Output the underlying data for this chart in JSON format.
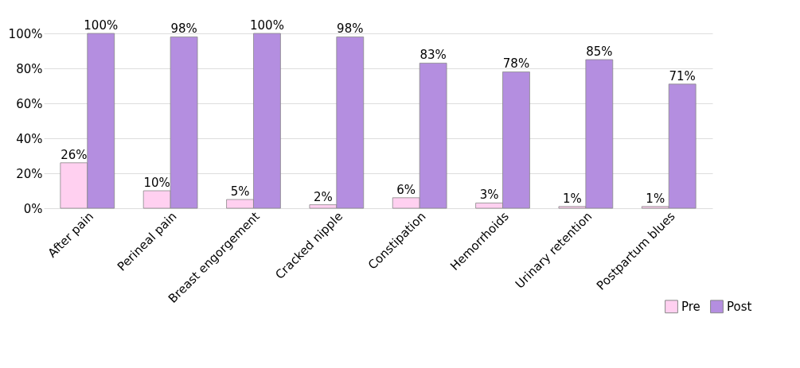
{
  "chart_data": {
    "type": "bar",
    "categories": [
      "After pain",
      "Perineal pain",
      "Breast engorgement",
      "Cracked nipple",
      "Constipation",
      "Hemorrhoids",
      "Urinary retention",
      "Postpartum blues"
    ],
    "series": [
      {
        "name": "Pre",
        "color": "#ffd0f0",
        "values": [
          26,
          10,
          5,
          2,
          6,
          3,
          1,
          1
        ],
        "value_labels": [
          "26%",
          "10%",
          "5%",
          "2%",
          "6%",
          "3%",
          "1%",
          "1%"
        ]
      },
      {
        "name": "Post",
        "color": "#b48ee0",
        "values": [
          100,
          98,
          100,
          98,
          83,
          78,
          85,
          71
        ],
        "value_labels": [
          "100%",
          "98%",
          "100%",
          "98%",
          "83%",
          "78%",
          "85%",
          "71%"
        ]
      }
    ],
    "ylim": [
      0,
      100
    ],
    "yticks": [
      {
        "value": 0,
        "label": "0%"
      },
      {
        "value": 20,
        "label": "20%"
      },
      {
        "value": 40,
        "label": "40%"
      },
      {
        "value": 60,
        "label": "60%"
      },
      {
        "value": 80,
        "label": "80%"
      },
      {
        "value": 100,
        "label": "100%"
      }
    ],
    "grid": "y",
    "legend": "bottom right"
  }
}
